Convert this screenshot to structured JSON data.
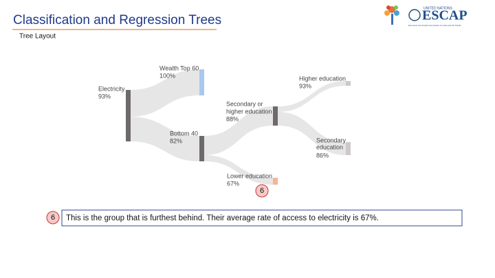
{
  "header": {
    "title": "Classification and Regression Trees",
    "subtitle": "Tree Layout"
  },
  "logo": {
    "org": "UNITED NATIONS",
    "name": "ESCAP",
    "tagline": "Economic and Social Commission for Asia and the Pacific"
  },
  "nodes": [
    {
      "label": [
        "Electricity"
      ],
      "value": "93%"
    },
    {
      "label": [
        "Wealth Top 60"
      ],
      "value": "100%"
    },
    {
      "label": [
        "Bottom 40"
      ],
      "value": "82%"
    },
    {
      "label": [
        "Secondary or",
        "higher education"
      ],
      "value": "88%"
    },
    {
      "label": [
        "Higher education"
      ],
      "value": "93%"
    },
    {
      "label": [
        "Secondary",
        "education"
      ],
      "value": "86%"
    },
    {
      "label": [
        "Lower education"
      ],
      "value": "67%"
    }
  ],
  "callout": {
    "number": "6",
    "text": "This is the group that is furthest behind. Their average rate of access to electricity is 67%."
  }
}
